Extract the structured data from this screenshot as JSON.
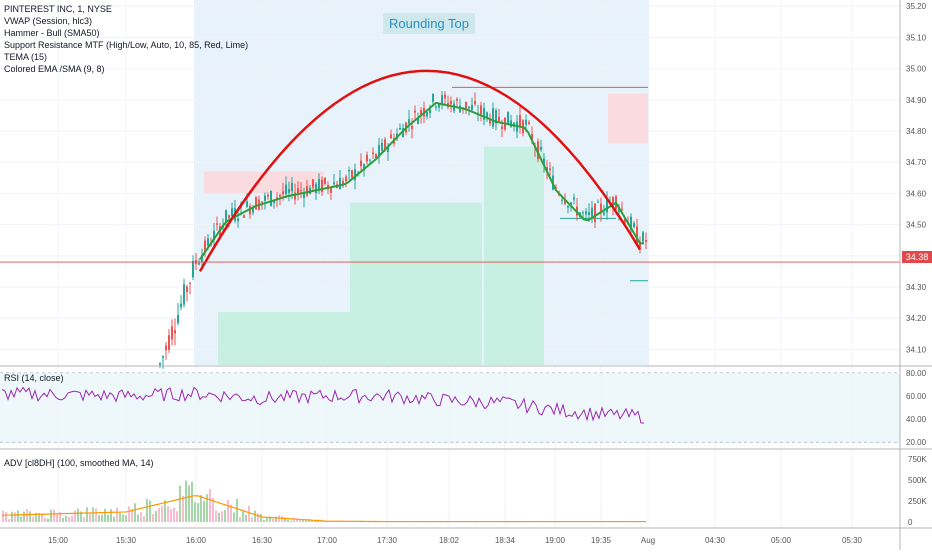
{
  "legend": [
    "PINTEREST INC, 1, NYSE",
    "VWAP (Session, hlc3)",
    "Hammer - Bull (SMA50)",
    "Support Resistance MTF (High/Low, Auto, 10, 85, Red, Lime)",
    "TEMA (15)",
    "Colored EMA /SMA (9, 8)"
  ],
  "annotation": "Rounding Top",
  "last_price": "34.38",
  "rsi_label": "RSI (14, close)",
  "adv_label": "ADV [cl8DH] (100, smoothed MA, 14)",
  "colors": {
    "accent": "#2196f3",
    "up": "#26a69a",
    "down": "#ef5350",
    "curve": "#e01010",
    "rsi": "#9c27b0",
    "ema": "#2e9e3a"
  },
  "chart_data": [
    {
      "type": "line",
      "title": "PINTEREST INC, 1, NYSE",
      "x_ticks": [
        "15:00",
        "15:30",
        "16:00",
        "16:30",
        "17:00",
        "17:30",
        "18:02",
        "18:34",
        "19:00",
        "19:35",
        "Aug",
        "04:30",
        "05:00",
        "05:30"
      ],
      "y_ticks": [
        35.2,
        35.1,
        35.0,
        34.9,
        34.8,
        34.7,
        34.6,
        34.5,
        34.4,
        34.3,
        34.2,
        34.1
      ],
      "ylim": [
        34.05,
        35.22
      ],
      "series": [
        {
          "x": [
            "16:00",
            "16:15",
            "16:30",
            "16:45",
            "17:00",
            "17:15",
            "17:30",
            "17:45",
            "18:02",
            "18:15",
            "18:34",
            "18:45",
            "19:00",
            "19:15",
            "19:35",
            "19:45"
          ],
          "values": [
            34.38,
            34.52,
            34.57,
            34.6,
            34.62,
            34.64,
            34.72,
            34.82,
            34.9,
            34.88,
            34.84,
            34.82,
            34.62,
            34.52,
            34.58,
            34.45
          ]
        }
      ],
      "annotations": [
        "Rounding Top"
      ],
      "last_price": 34.38
    },
    {
      "type": "line",
      "title": "RSI (14, close)",
      "y_ticks": [
        80.0,
        60.0,
        40.0,
        20.0
      ],
      "ylim": [
        15,
        85
      ],
      "series": [
        {
          "x": [
            "15:00",
            "15:30",
            "16:00",
            "16:30",
            "17:00",
            "17:30",
            "18:02",
            "18:34",
            "19:00",
            "19:35",
            "Aug"
          ],
          "values": [
            62,
            60,
            62,
            58,
            60,
            60,
            56,
            54,
            48,
            44,
            42
          ]
        }
      ]
    },
    {
      "type": "area",
      "title": "ADV [cl8DH] (100, smoothed MA, 14)",
      "y_ticks": [
        "750K",
        "500K",
        "250K",
        "0"
      ],
      "series": [
        {
          "x": [
            "15:00",
            "15:30",
            "16:00",
            "16:30",
            "17:00",
            "17:30",
            "18:02",
            "18:34",
            "19:00",
            "19:35",
            "Aug"
          ],
          "values": [
            80000,
            120000,
            320000,
            60000,
            10000,
            5000,
            5000,
            5000,
            5000,
            5000,
            5000
          ]
        }
      ]
    }
  ]
}
